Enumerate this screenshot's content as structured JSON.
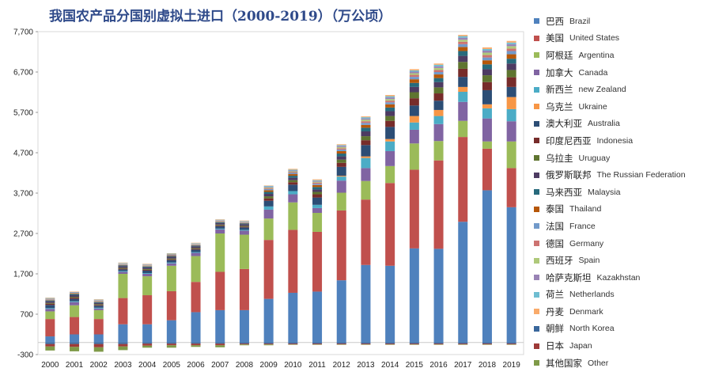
{
  "chart_data": {
    "type": "bar",
    "stacked": true,
    "title": "我国农产品分国别虚拟土进口（2000-2019）（万公顷）",
    "ylim": [
      -300,
      7700
    ],
    "yticks": [
      -300,
      700,
      1700,
      2700,
      3700,
      4700,
      5700,
      6700,
      7700
    ],
    "ytick_labels": [
      "-300",
      "700",
      "1,700",
      "2,700",
      "3,700",
      "4,700",
      "5,700",
      "6,700",
      "7,700"
    ],
    "categories": [
      "2000",
      "2001",
      "2002",
      "2003",
      "2004",
      "2005",
      "2006",
      "2007",
      "2008",
      "2009",
      "2010",
      "2011",
      "2012",
      "2013",
      "2014",
      "2015",
      "2016",
      "2017",
      "2018",
      "2019"
    ],
    "legend_position": "right",
    "series": [
      {
        "name_cn": "巴西",
        "name_en": "Brazil",
        "color": "#4f81bd",
        "values": [
          150,
          200,
          200,
          450,
          450,
          550,
          750,
          800,
          800,
          1080,
          1230,
          1260,
          1540,
          1920,
          1900,
          2330,
          2320,
          2990,
          3770,
          3350
        ]
      },
      {
        "name_cn": "美国",
        "name_en": "United States",
        "color": "#c0504d",
        "values": [
          430,
          430,
          380,
          650,
          720,
          720,
          750,
          950,
          1020,
          1460,
          1560,
          1480,
          1730,
          1620,
          2050,
          1950,
          2190,
          2100,
          1030,
          970
        ]
      },
      {
        "name_cn": "阿根廷",
        "name_en": "Argentina",
        "color": "#9bbb59",
        "values": [
          190,
          290,
          220,
          600,
          470,
          630,
          640,
          950,
          850,
          530,
          680,
          470,
          440,
          460,
          420,
          650,
          480,
          400,
          180,
          660
        ]
      },
      {
        "name_cn": "加拿大",
        "name_en": "Canada",
        "color": "#8064a2",
        "values": [
          60,
          80,
          40,
          50,
          60,
          60,
          80,
          100,
          100,
          220,
          200,
          120,
          300,
          320,
          370,
          340,
          420,
          470,
          570,
          500
        ]
      },
      {
        "name_cn": "新西兰",
        "name_en": "new Zealand",
        "color": "#4bacc6",
        "values": [
          20,
          20,
          20,
          20,
          20,
          20,
          20,
          20,
          20,
          80,
          80,
          80,
          100,
          250,
          240,
          180,
          200,
          250,
          250,
          300
        ]
      },
      {
        "name_cn": "乌克兰",
        "name_en": "Ukraine",
        "color": "#f79646",
        "values": [
          0,
          0,
          0,
          0,
          0,
          0,
          0,
          0,
          0,
          0,
          0,
          0,
          20,
          40,
          60,
          160,
          150,
          120,
          100,
          300
        ]
      },
      {
        "name_cn": "澳大利亚",
        "name_en": "Australia",
        "color": "#2c4d75",
        "values": [
          80,
          60,
          50,
          40,
          60,
          60,
          60,
          60,
          60,
          140,
          160,
          180,
          220,
          280,
          300,
          260,
          230,
          250,
          350,
          250
        ]
      },
      {
        "name_cn": "印度尼西亚",
        "name_en": "Indonesia",
        "color": "#772c2a",
        "values": [
          30,
          30,
          20,
          20,
          20,
          20,
          20,
          20,
          20,
          60,
          60,
          80,
          100,
          120,
          150,
          180,
          180,
          200,
          200,
          240
        ]
      },
      {
        "name_cn": "乌拉圭",
        "name_en": "Uruguay",
        "color": "#5f7530",
        "values": [
          20,
          20,
          20,
          20,
          20,
          20,
          20,
          20,
          20,
          50,
          50,
          60,
          80,
          100,
          120,
          150,
          150,
          170,
          170,
          180
        ]
      },
      {
        "name_cn": "俄罗斯联邦",
        "name_en": "The Russian Federation",
        "color": "#4d3b62",
        "values": [
          40,
          40,
          30,
          40,
          40,
          40,
          40,
          40,
          40,
          60,
          60,
          60,
          80,
          120,
          120,
          130,
          130,
          150,
          150,
          160
        ]
      },
      {
        "name_cn": "马来西亚",
        "name_en": "Malaysia",
        "color": "#276a7c",
        "values": [
          20,
          20,
          20,
          20,
          20,
          20,
          20,
          20,
          20,
          50,
          50,
          60,
          70,
          90,
          90,
          100,
          100,
          120,
          120,
          120
        ]
      },
      {
        "name_cn": "泰国",
        "name_en": "Thailand",
        "color": "#b65708",
        "values": [
          10,
          10,
          10,
          10,
          10,
          10,
          10,
          10,
          10,
          40,
          40,
          50,
          60,
          70,
          80,
          90,
          90,
          100,
          100,
          110
        ]
      },
      {
        "name_cn": "法国",
        "name_en": "France",
        "color": "#729aca",
        "values": [
          10,
          10,
          10,
          10,
          10,
          10,
          10,
          10,
          10,
          30,
          30,
          30,
          40,
          50,
          50,
          60,
          60,
          70,
          70,
          80
        ]
      },
      {
        "name_cn": "德国",
        "name_en": "Germany",
        "color": "#cd7371",
        "values": [
          10,
          10,
          10,
          10,
          10,
          10,
          10,
          10,
          10,
          20,
          20,
          30,
          30,
          40,
          40,
          50,
          50,
          60,
          60,
          60
        ]
      },
      {
        "name_cn": "西班牙",
        "name_en": "Spain",
        "color": "#afc97a",
        "values": [
          10,
          10,
          10,
          10,
          10,
          10,
          10,
          10,
          10,
          20,
          20,
          20,
          30,
          40,
          40,
          40,
          50,
          50,
          60,
          60
        ]
      },
      {
        "name_cn": "哈萨克斯坦",
        "name_en": "Kazakhstan",
        "color": "#9983b5",
        "values": [
          10,
          10,
          10,
          10,
          10,
          10,
          10,
          10,
          10,
          20,
          20,
          20,
          30,
          30,
          40,
          40,
          40,
          50,
          50,
          50
        ]
      },
      {
        "name_cn": "荷兰",
        "name_en": "Netherlands",
        "color": "#6fbdd1",
        "values": [
          10,
          10,
          10,
          10,
          10,
          10,
          10,
          10,
          10,
          20,
          20,
          20,
          20,
          30,
          30,
          30,
          40,
          40,
          40,
          40
        ]
      },
      {
        "name_cn": "丹麦",
        "name_en": "Denmark",
        "color": "#f9ab6b",
        "values": [
          10,
          10,
          10,
          10,
          10,
          10,
          10,
          10,
          10,
          10,
          20,
          20,
          20,
          20,
          30,
          30,
          30,
          30,
          40,
          40
        ]
      },
      {
        "name_cn": "朝鲜",
        "name_en": "North Korea",
        "color": "#3a679c",
        "values": [
          -40,
          -40,
          -40,
          -40,
          -30,
          -30,
          -30,
          -30,
          -30,
          -30,
          -30,
          -30,
          -30,
          -30,
          -30,
          -30,
          -30,
          -30,
          -30,
          -30
        ]
      },
      {
        "name_cn": "日本",
        "name_en": "Japan",
        "color": "#9e3a38",
        "values": [
          -60,
          -70,
          -80,
          -60,
          -50,
          -40,
          -40,
          -40,
          -20,
          -20,
          -20,
          -20,
          -20,
          -20,
          -20,
          -20,
          -20,
          -20,
          -20,
          -20
        ]
      },
      {
        "name_cn": "其他国家",
        "name_en": "Other",
        "color": "#7f9a48",
        "values": [
          -100,
          -110,
          -110,
          -90,
          -50,
          -60,
          -40,
          -50,
          -20,
          -20,
          -10,
          -10,
          -10,
          -10,
          -10,
          -10,
          -10,
          -10,
          -10,
          -10
        ]
      }
    ]
  }
}
